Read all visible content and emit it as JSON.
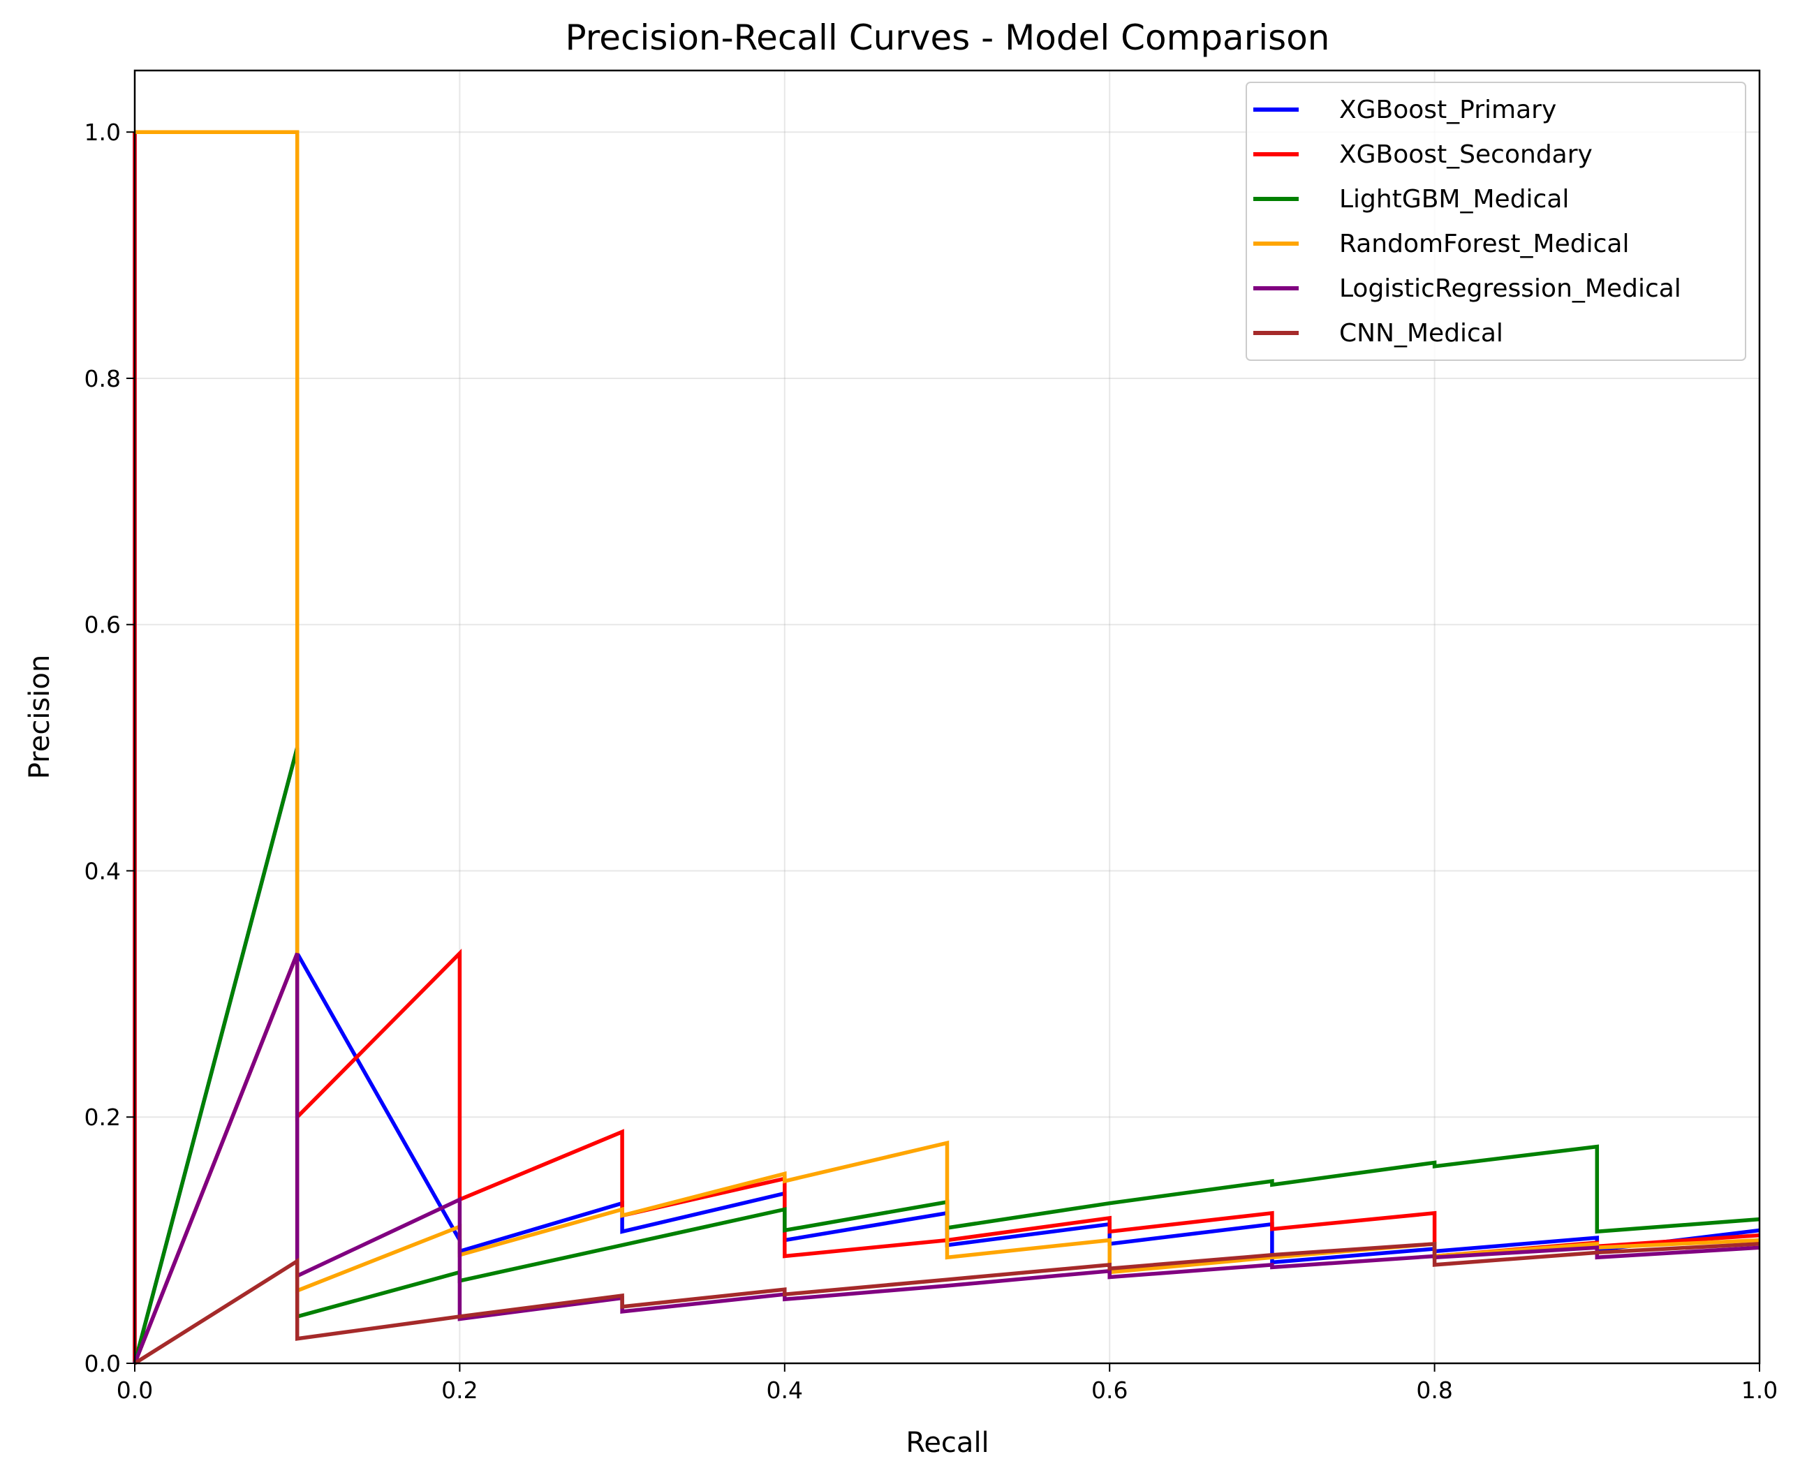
{
  "chart_data": {
    "type": "line",
    "title": "Precision-Recall Curves - Model Comparison",
    "xlabel": "Recall",
    "ylabel": "Precision",
    "xlim": [
      0,
      1
    ],
    "ylim": [
      0,
      1.05
    ],
    "xticks": [
      "0.0",
      "0.2",
      "0.4",
      "0.6",
      "0.8",
      "1.0"
    ],
    "yticks": [
      "0.0",
      "0.2",
      "0.4",
      "0.6",
      "0.8",
      "1.0"
    ],
    "grid": true,
    "legend_position": "top-right",
    "series": [
      {
        "name": "XGBoost_Primary",
        "color": "#0000ff",
        "points": [
          [
            0,
            1
          ],
          [
            0,
            0
          ],
          [
            0.1,
            0.5
          ],
          [
            0.1,
            0.333
          ],
          [
            0.2,
            0.1
          ],
          [
            0.2,
            0.091
          ],
          [
            0.3,
            0.13
          ],
          [
            0.3,
            0.107
          ],
          [
            0.4,
            0.138
          ],
          [
            0.4,
            0.1
          ],
          [
            0.5,
            0.122
          ],
          [
            0.5,
            0.096
          ],
          [
            0.6,
            0.113
          ],
          [
            0.6,
            0.097
          ],
          [
            0.7,
            0.113
          ],
          [
            0.7,
            0.082
          ],
          [
            0.8,
            0.093
          ],
          [
            0.8,
            0.091
          ],
          [
            0.9,
            0.102
          ],
          [
            0.9,
            0.092
          ],
          [
            1.0,
            0.108
          ]
        ]
      },
      {
        "name": "XGBoost_Secondary",
        "color": "#ff0000",
        "points": [
          [
            0,
            1
          ],
          [
            0,
            0
          ],
          [
            0.1,
            0.333
          ],
          [
            0.1,
            0.2
          ],
          [
            0.2,
            0.333
          ],
          [
            0.2,
            0.133
          ],
          [
            0.3,
            0.188
          ],
          [
            0.3,
            0.12
          ],
          [
            0.4,
            0.15
          ],
          [
            0.4,
            0.087
          ],
          [
            0.5,
            0.1
          ],
          [
            0.5,
            0.1
          ],
          [
            0.6,
            0.118
          ],
          [
            0.6,
            0.107
          ],
          [
            0.7,
            0.122
          ],
          [
            0.7,
            0.109
          ],
          [
            0.8,
            0.122
          ],
          [
            0.8,
            0.087
          ],
          [
            0.9,
            0.098
          ],
          [
            0.9,
            0.095
          ],
          [
            1.0,
            0.104
          ]
        ]
      },
      {
        "name": "LightGBM_Medical",
        "color": "#008000",
        "points": [
          [
            0,
            0
          ],
          [
            0.1,
            0.5
          ],
          [
            0.1,
            0.038
          ],
          [
            0.2,
            0.074
          ],
          [
            0.2,
            0.067
          ],
          [
            0.3,
            0.096
          ],
          [
            0.3,
            0.096
          ],
          [
            0.4,
            0.125
          ],
          [
            0.4,
            0.108
          ],
          [
            0.5,
            0.131
          ],
          [
            0.5,
            0.11
          ],
          [
            0.6,
            0.13
          ],
          [
            0.6,
            0.13
          ],
          [
            0.7,
            0.148
          ],
          [
            0.7,
            0.145
          ],
          [
            0.8,
            0.163
          ],
          [
            0.8,
            0.16
          ],
          [
            0.9,
            0.176
          ],
          [
            0.9,
            0.107
          ],
          [
            1.0,
            0.117
          ]
        ]
      },
      {
        "name": "RandomForest_Medical",
        "color": "#ffa500",
        "points": [
          [
            0,
            1
          ],
          [
            0.1,
            1
          ],
          [
            0.1,
            0.059
          ],
          [
            0.2,
            0.111
          ],
          [
            0.2,
            0.088
          ],
          [
            0.3,
            0.125
          ],
          [
            0.3,
            0.12
          ],
          [
            0.4,
            0.154
          ],
          [
            0.4,
            0.148
          ],
          [
            0.5,
            0.179
          ],
          [
            0.5,
            0.086
          ],
          [
            0.6,
            0.1
          ],
          [
            0.6,
            0.074
          ],
          [
            0.7,
            0.086
          ],
          [
            0.7,
            0.086
          ],
          [
            0.8,
            0.097
          ],
          [
            0.8,
            0.087
          ],
          [
            0.9,
            0.097
          ],
          [
            0.9,
            0.094
          ],
          [
            1.0,
            0.1
          ]
        ]
      },
      {
        "name": "LogisticRegression_Medical",
        "color": "#800080",
        "points": [
          [
            0,
            0
          ],
          [
            0.1,
            0.333
          ],
          [
            0.1,
            0.071
          ],
          [
            0.2,
            0.133
          ],
          [
            0.2,
            0.036
          ],
          [
            0.3,
            0.053
          ],
          [
            0.3,
            0.042
          ],
          [
            0.4,
            0.056
          ],
          [
            0.4,
            0.052
          ],
          [
            0.5,
            0.063
          ],
          [
            0.5,
            0.063
          ],
          [
            0.6,
            0.075
          ],
          [
            0.6,
            0.07
          ],
          [
            0.7,
            0.08
          ],
          [
            0.7,
            0.078
          ],
          [
            0.8,
            0.087
          ],
          [
            0.8,
            0.086
          ],
          [
            0.9,
            0.094
          ],
          [
            0.9,
            0.086
          ],
          [
            1.0,
            0.094
          ]
        ]
      },
      {
        "name": "CNN_Medical",
        "color": "#a52a2a",
        "points": [
          [
            0,
            0
          ],
          [
            0.1,
            0.083
          ],
          [
            0.1,
            0.02
          ],
          [
            0.2,
            0.038
          ],
          [
            0.2,
            0.038
          ],
          [
            0.3,
            0.055
          ],
          [
            0.3,
            0.046
          ],
          [
            0.4,
            0.06
          ],
          [
            0.4,
            0.056
          ],
          [
            0.5,
            0.068
          ],
          [
            0.5,
            0.068
          ],
          [
            0.6,
            0.08
          ],
          [
            0.6,
            0.077
          ],
          [
            0.7,
            0.088
          ],
          [
            0.7,
            0.088
          ],
          [
            0.8,
            0.097
          ],
          [
            0.8,
            0.08
          ],
          [
            0.9,
            0.09
          ],
          [
            0.9,
            0.09
          ],
          [
            1.0,
            0.097
          ]
        ]
      }
    ]
  }
}
